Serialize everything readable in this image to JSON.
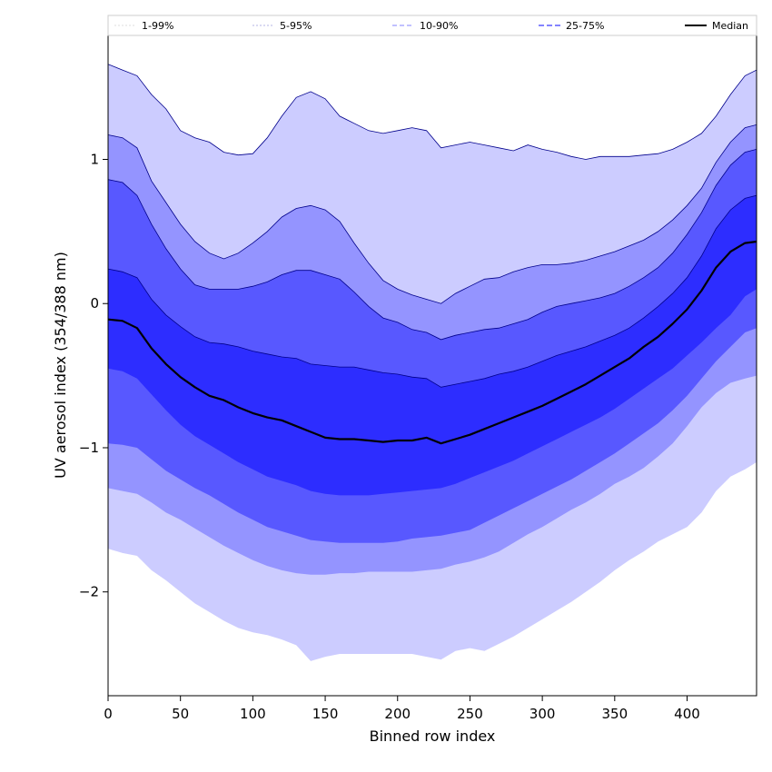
{
  "chart_data": {
    "type": "area",
    "title": "",
    "xlabel": "Binned row index",
    "ylabel": "UV aerosol index (354/388 nm)",
    "xlim": [
      0,
      448
    ],
    "ylim": [
      -2.72,
      1.86
    ],
    "xticks": [
      0,
      50,
      100,
      150,
      200,
      250,
      300,
      350,
      400
    ],
    "yticks": [
      -2,
      -1,
      0,
      1
    ],
    "ytick_labels": [
      "−2",
      "−1",
      "0",
      "1"
    ],
    "grid": false,
    "legend_position": "top",
    "colors": {
      "band_1_99": "#ccccff",
      "band_5_95": "#9494ff",
      "band_10_90": "#5858ff",
      "band_25_75": "#2d2dff",
      "median": "#000000",
      "outline": "#00008b"
    },
    "x": [
      0,
      10,
      20,
      30,
      40,
      50,
      60,
      70,
      80,
      90,
      100,
      110,
      120,
      130,
      140,
      150,
      160,
      170,
      180,
      190,
      200,
      210,
      220,
      230,
      240,
      250,
      260,
      270,
      280,
      290,
      300,
      310,
      320,
      330,
      340,
      350,
      360,
      370,
      380,
      390,
      400,
      410,
      420,
      430,
      440,
      448
    ],
    "series": [
      {
        "name": "1-99%",
        "role": "band",
        "upper": [
          1.66,
          1.62,
          1.58,
          1.45,
          1.35,
          1.2,
          1.15,
          1.12,
          1.05,
          1.03,
          1.04,
          1.15,
          1.3,
          1.43,
          1.47,
          1.42,
          1.3,
          1.25,
          1.2,
          1.18,
          1.2,
          1.22,
          1.2,
          1.08,
          1.1,
          1.12,
          1.1,
          1.08,
          1.06,
          1.1,
          1.07,
          1.05,
          1.02,
          1.0,
          1.02,
          1.02,
          1.02,
          1.03,
          1.04,
          1.07,
          1.12,
          1.18,
          1.3,
          1.45,
          1.58,
          1.62
        ],
        "lower": [
          -1.7,
          -1.73,
          -1.75,
          -1.85,
          -1.92,
          -2.0,
          -2.08,
          -2.14,
          -2.2,
          -2.25,
          -2.28,
          -2.3,
          -2.33,
          -2.37,
          -2.48,
          -2.45,
          -2.43,
          -2.43,
          -2.43,
          -2.43,
          -2.43,
          -2.43,
          -2.45,
          -2.47,
          -2.41,
          -2.39,
          -2.41,
          -2.36,
          -2.31,
          -2.25,
          -2.19,
          -2.13,
          -2.07,
          -2.0,
          -1.93,
          -1.85,
          -1.78,
          -1.72,
          -1.65,
          -1.6,
          -1.55,
          -1.45,
          -1.3,
          -1.2,
          -1.15,
          -1.1
        ]
      },
      {
        "name": "5-95%",
        "role": "band",
        "upper": [
          1.17,
          1.15,
          1.08,
          0.85,
          0.7,
          0.55,
          0.43,
          0.35,
          0.31,
          0.35,
          0.42,
          0.5,
          0.6,
          0.66,
          0.68,
          0.65,
          0.57,
          0.42,
          0.28,
          0.16,
          0.1,
          0.06,
          0.03,
          0.0,
          0.07,
          0.12,
          0.17,
          0.18,
          0.22,
          0.25,
          0.27,
          0.27,
          0.28,
          0.3,
          0.33,
          0.36,
          0.4,
          0.44,
          0.5,
          0.58,
          0.68,
          0.8,
          0.98,
          1.12,
          1.22,
          1.24
        ],
        "lower": [
          -1.28,
          -1.3,
          -1.32,
          -1.38,
          -1.45,
          -1.5,
          -1.56,
          -1.62,
          -1.68,
          -1.73,
          -1.78,
          -1.82,
          -1.85,
          -1.87,
          -1.88,
          -1.88,
          -1.87,
          -1.87,
          -1.86,
          -1.86,
          -1.86,
          -1.86,
          -1.85,
          -1.84,
          -1.81,
          -1.79,
          -1.76,
          -1.72,
          -1.66,
          -1.6,
          -1.55,
          -1.49,
          -1.43,
          -1.38,
          -1.32,
          -1.25,
          -1.2,
          -1.14,
          -1.06,
          -0.97,
          -0.85,
          -0.72,
          -0.62,
          -0.55,
          -0.52,
          -0.5
        ]
      },
      {
        "name": "10-90%",
        "role": "band",
        "upper": [
          0.86,
          0.84,
          0.75,
          0.55,
          0.38,
          0.24,
          0.13,
          0.1,
          0.1,
          0.1,
          0.12,
          0.15,
          0.2,
          0.23,
          0.23,
          0.2,
          0.17,
          0.08,
          -0.02,
          -0.1,
          -0.13,
          -0.18,
          -0.2,
          -0.25,
          -0.22,
          -0.2,
          -0.18,
          -0.17,
          -0.14,
          -0.11,
          -0.06,
          -0.02,
          0.0,
          0.02,
          0.04,
          0.07,
          0.12,
          0.18,
          0.25,
          0.35,
          0.48,
          0.63,
          0.82,
          0.96,
          1.05,
          1.07
        ],
        "lower": [
          -0.97,
          -0.98,
          -1.0,
          -1.08,
          -1.16,
          -1.22,
          -1.28,
          -1.33,
          -1.39,
          -1.45,
          -1.5,
          -1.55,
          -1.58,
          -1.61,
          -1.64,
          -1.65,
          -1.66,
          -1.66,
          -1.66,
          -1.66,
          -1.65,
          -1.63,
          -1.62,
          -1.61,
          -1.59,
          -1.57,
          -1.52,
          -1.47,
          -1.42,
          -1.37,
          -1.32,
          -1.27,
          -1.22,
          -1.16,
          -1.1,
          -1.04,
          -0.97,
          -0.9,
          -0.83,
          -0.74,
          -0.64,
          -0.52,
          -0.4,
          -0.3,
          -0.2,
          -0.17
        ]
      },
      {
        "name": "25-75%",
        "role": "band",
        "upper": [
          0.24,
          0.22,
          0.18,
          0.03,
          -0.08,
          -0.16,
          -0.23,
          -0.27,
          -0.28,
          -0.3,
          -0.33,
          -0.35,
          -0.37,
          -0.38,
          -0.42,
          -0.43,
          -0.44,
          -0.44,
          -0.46,
          -0.48,
          -0.49,
          -0.51,
          -0.52,
          -0.58,
          -0.56,
          -0.54,
          -0.52,
          -0.49,
          -0.47,
          -0.44,
          -0.4,
          -0.36,
          -0.33,
          -0.3,
          -0.26,
          -0.22,
          -0.17,
          -0.1,
          -0.02,
          0.07,
          0.18,
          0.33,
          0.52,
          0.65,
          0.73,
          0.75
        ],
        "lower": [
          -0.45,
          -0.47,
          -0.52,
          -0.63,
          -0.74,
          -0.84,
          -0.92,
          -0.98,
          -1.04,
          -1.1,
          -1.15,
          -1.2,
          -1.23,
          -1.26,
          -1.3,
          -1.32,
          -1.33,
          -1.33,
          -1.33,
          -1.32,
          -1.31,
          -1.3,
          -1.29,
          -1.28,
          -1.25,
          -1.21,
          -1.17,
          -1.13,
          -1.09,
          -1.04,
          -0.99,
          -0.94,
          -0.89,
          -0.84,
          -0.79,
          -0.73,
          -0.66,
          -0.59,
          -0.52,
          -0.45,
          -0.36,
          -0.27,
          -0.17,
          -0.08,
          0.05,
          0.1
        ]
      },
      {
        "name": "Median",
        "role": "line",
        "values": [
          -0.11,
          -0.12,
          -0.17,
          -0.31,
          -0.42,
          -0.51,
          -0.58,
          -0.64,
          -0.67,
          -0.72,
          -0.76,
          -0.79,
          -0.81,
          -0.85,
          -0.89,
          -0.93,
          -0.94,
          -0.94,
          -0.95,
          -0.96,
          -0.95,
          -0.95,
          -0.93,
          -0.97,
          -0.94,
          -0.91,
          -0.87,
          -0.83,
          -0.79,
          -0.75,
          -0.71,
          -0.66,
          -0.61,
          -0.56,
          -0.5,
          -0.44,
          -0.38,
          -0.3,
          -0.23,
          -0.14,
          -0.04,
          0.09,
          0.25,
          0.36,
          0.42,
          0.43
        ]
      }
    ]
  }
}
